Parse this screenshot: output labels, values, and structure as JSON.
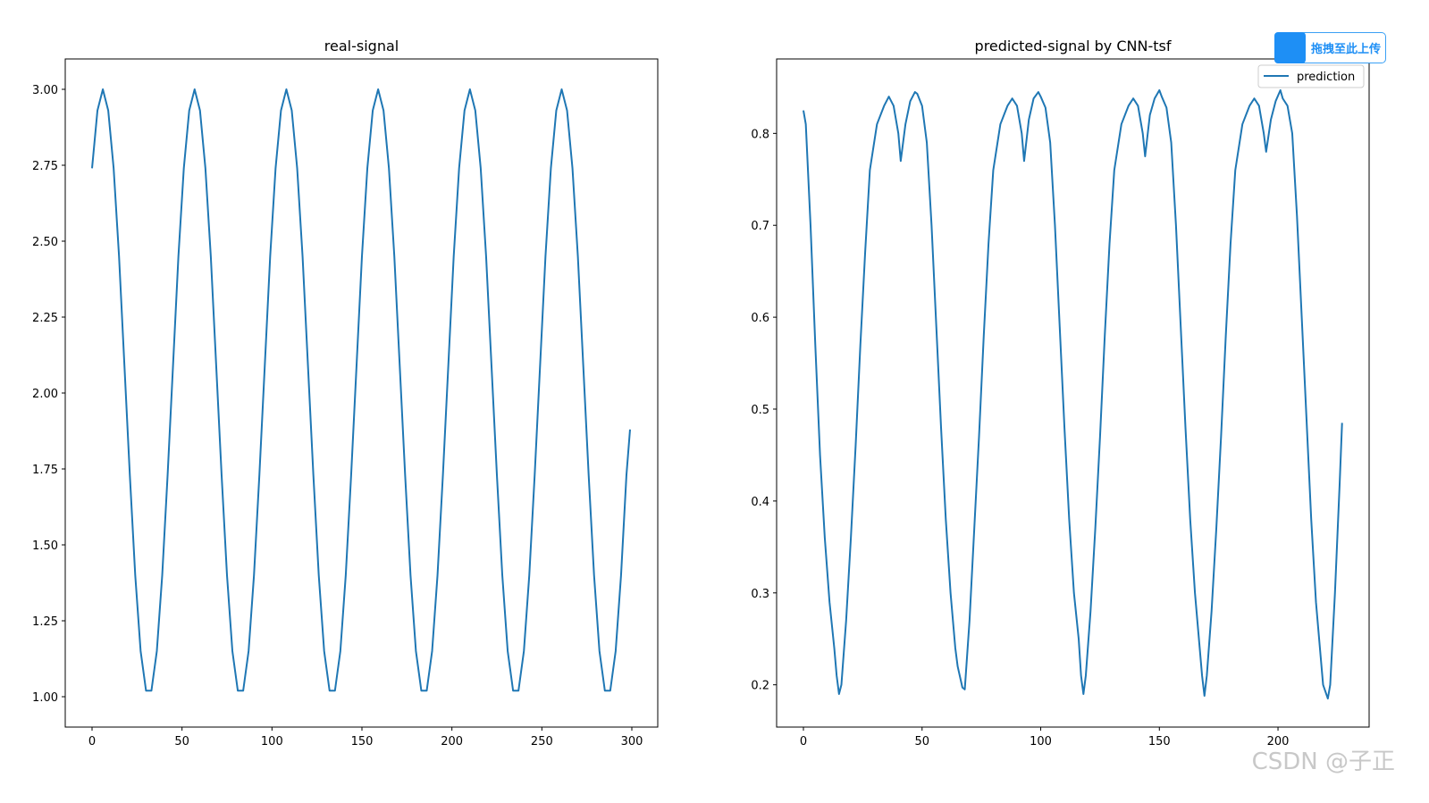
{
  "chart_data": [
    {
      "type": "line",
      "title": "real-signal",
      "color": "#1f77b4",
      "x": [
        0,
        3,
        6,
        9,
        12,
        15,
        18,
        21,
        24,
        27,
        30,
        33,
        36,
        39,
        42,
        45,
        48,
        51,
        54,
        57,
        60,
        63,
        66,
        69,
        72,
        75,
        78,
        81,
        84,
        87,
        90,
        93,
        96,
        99,
        102,
        105,
        108,
        111,
        114,
        117,
        120,
        123,
        126,
        129,
        132,
        135,
        138,
        141,
        144,
        147,
        150,
        153,
        156,
        159,
        162,
        165,
        168,
        171,
        174,
        177,
        180,
        183,
        186,
        189,
        192,
        195,
        198,
        201,
        204,
        207,
        210,
        213,
        216,
        219,
        222,
        225,
        228,
        231,
        234,
        237,
        240,
        243,
        246,
        249,
        252,
        255,
        258,
        261,
        264,
        267,
        270,
        273,
        276,
        279,
        282,
        285,
        288,
        291,
        294,
        297,
        299
      ],
      "values": [
        2.74,
        2.93,
        3.0,
        2.93,
        2.74,
        2.45,
        2.09,
        1.73,
        1.4,
        1.15,
        1.02,
        1.02,
        1.15,
        1.4,
        1.73,
        2.09,
        2.45,
        2.74,
        2.93,
        3.0,
        2.93,
        2.74,
        2.45,
        2.09,
        1.73,
        1.4,
        1.15,
        1.02,
        1.02,
        1.15,
        1.4,
        1.73,
        2.09,
        2.45,
        2.74,
        2.93,
        3.0,
        2.93,
        2.74,
        2.45,
        2.09,
        1.73,
        1.4,
        1.15,
        1.02,
        1.02,
        1.15,
        1.4,
        1.73,
        2.09,
        2.45,
        2.74,
        2.93,
        3.0,
        2.93,
        2.74,
        2.45,
        2.09,
        1.73,
        1.4,
        1.15,
        1.02,
        1.02,
        1.15,
        1.4,
        1.73,
        2.09,
        2.45,
        2.74,
        2.93,
        3.0,
        2.93,
        2.74,
        2.45,
        2.09,
        1.73,
        1.4,
        1.15,
        1.02,
        1.02,
        1.15,
        1.4,
        1.73,
        2.09,
        2.45,
        2.74,
        2.93,
        3.0,
        2.93,
        2.74,
        2.45,
        2.09,
        1.73,
        1.4,
        1.15,
        1.02,
        1.02,
        1.15,
        1.4,
        1.73,
        1.88
      ],
      "xlim": [
        -14.9,
        314.4
      ],
      "ylim": [
        0.9,
        3.1
      ],
      "xticks": [
        0,
        50,
        100,
        150,
        200,
        250,
        300
      ],
      "yticks": [
        {
          "value": 1,
          "label": "1.00"
        },
        {
          "value": 1.25,
          "label": "1.25"
        },
        {
          "value": 1.5,
          "label": "1.50"
        },
        {
          "value": 1.75,
          "label": "1.75"
        },
        {
          "value": 2,
          "label": "2.00"
        },
        {
          "value": 2.25,
          "label": "2.25"
        },
        {
          "value": 2.5,
          "label": "2.50"
        },
        {
          "value": 2.75,
          "label": "2.75"
        },
        {
          "value": 3,
          "label": "3.00"
        }
      ]
    },
    {
      "type": "line",
      "title": "predicted-signal by CNN-tsf",
      "legend": "upper right",
      "x": [
        0,
        1,
        3,
        5,
        7,
        9,
        11,
        13,
        14,
        15,
        16,
        18,
        20,
        22,
        24,
        26,
        28,
        31,
        34,
        36,
        38,
        40,
        41,
        43,
        45,
        47,
        48,
        50,
        52,
        54,
        56,
        58,
        60,
        62,
        64,
        65,
        67,
        68,
        70,
        72,
        74,
        76,
        78,
        80,
        83,
        86,
        88,
        90,
        92,
        93,
        95,
        97,
        99,
        100,
        102,
        104,
        106,
        108,
        110,
        112,
        114,
        116,
        117,
        118,
        119,
        121,
        123,
        125,
        127,
        129,
        131,
        134,
        137,
        139,
        141,
        143,
        144,
        146,
        148,
        150,
        151,
        153,
        155,
        157,
        159,
        161,
        163,
        165,
        167,
        168,
        169,
        170,
        172,
        174,
        176,
        178,
        180,
        182,
        185,
        188,
        190,
        192,
        194,
        195,
        197,
        199,
        201,
        202,
        204,
        206,
        208,
        210,
        212,
        214,
        216,
        218,
        219,
        221,
        222,
        224,
        226,
        227
      ],
      "series": [
        {
          "name": "prediction",
          "color": "#1f77b4",
          "values": [
            0.825,
            0.81,
            0.7,
            0.57,
            0.45,
            0.36,
            0.29,
            0.24,
            0.21,
            0.19,
            0.2,
            0.27,
            0.36,
            0.46,
            0.57,
            0.67,
            0.76,
            0.81,
            0.83,
            0.84,
            0.83,
            0.8,
            0.77,
            0.81,
            0.835,
            0.845,
            0.843,
            0.83,
            0.79,
            0.7,
            0.59,
            0.48,
            0.38,
            0.3,
            0.24,
            0.22,
            0.197,
            0.195,
            0.27,
            0.37,
            0.47,
            0.58,
            0.68,
            0.76,
            0.81,
            0.83,
            0.838,
            0.83,
            0.8,
            0.77,
            0.815,
            0.838,
            0.845,
            0.84,
            0.828,
            0.79,
            0.7,
            0.59,
            0.48,
            0.38,
            0.3,
            0.25,
            0.21,
            0.19,
            0.21,
            0.28,
            0.37,
            0.47,
            0.58,
            0.68,
            0.76,
            0.81,
            0.83,
            0.838,
            0.83,
            0.8,
            0.775,
            0.82,
            0.838,
            0.847,
            0.84,
            0.828,
            0.79,
            0.7,
            0.59,
            0.48,
            0.38,
            0.3,
            0.24,
            0.21,
            0.188,
            0.21,
            0.28,
            0.37,
            0.47,
            0.58,
            0.68,
            0.76,
            0.81,
            0.83,
            0.838,
            0.83,
            0.8,
            0.78,
            0.815,
            0.835,
            0.847,
            0.838,
            0.83,
            0.8,
            0.71,
            0.6,
            0.49,
            0.38,
            0.29,
            0.23,
            0.2,
            0.185,
            0.2,
            0.3,
            0.42,
            0.485
          ]
        }
      ],
      "xlim": [
        -11.3,
        238.4
      ],
      "ylim": [
        0.154,
        0.881
      ],
      "xticks": [
        0,
        50,
        100,
        150,
        200
      ],
      "yticks": [
        0.2,
        0.3,
        0.4,
        0.5,
        0.6,
        0.7,
        0.8
      ]
    }
  ],
  "overlay": {
    "upload_button": "拖拽至此上传",
    "watermark": "CSDN @子正"
  }
}
